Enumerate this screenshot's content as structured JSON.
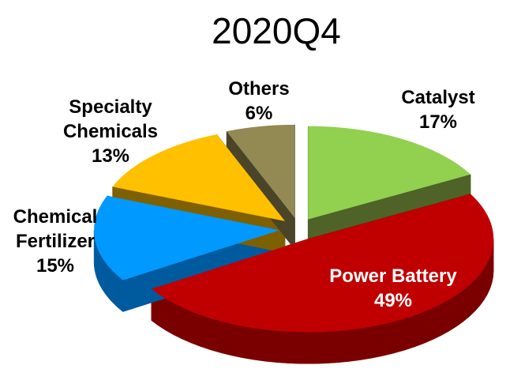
{
  "chart_data": {
    "type": "pie",
    "title": "2020Q4",
    "categories": [
      "Catalyst",
      "Power Battery",
      "Chemical Fertilizer",
      "Specialty Chemicals",
      "Others"
    ],
    "values": [
      17,
      49,
      15,
      13,
      6
    ],
    "value_labels": [
      "17%",
      "49%",
      "15%",
      "13%",
      "6%"
    ],
    "colors": [
      "#92d050",
      "#c00000",
      "#0099ff",
      "#ffc000",
      "#938953"
    ],
    "side_colors": [
      "#4f6228",
      "#7a0000",
      "#005a9e",
      "#7f6000",
      "#4a4529"
    ]
  }
}
